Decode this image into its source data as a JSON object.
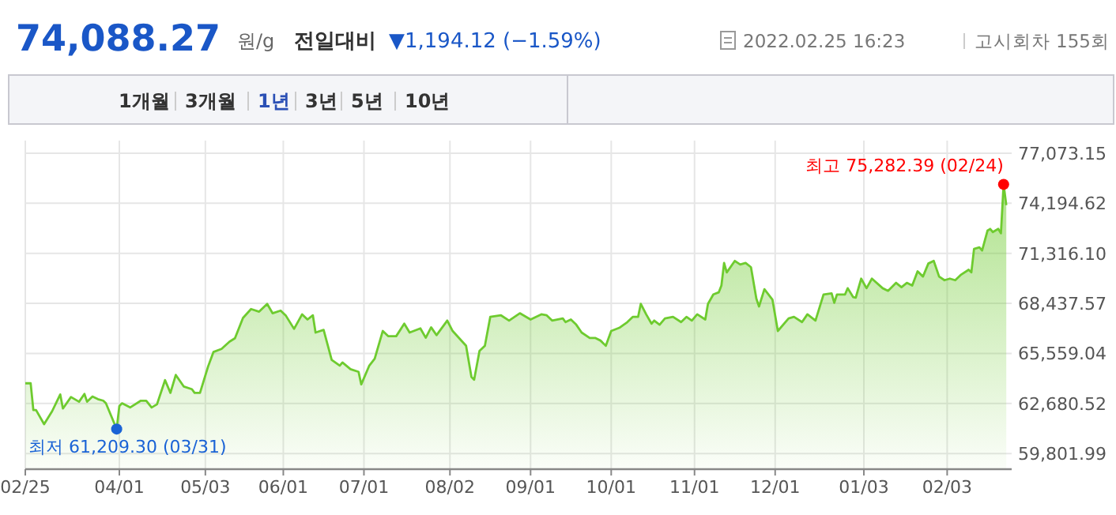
{
  "chart_data": {
    "type": "area",
    "title": "74,088.27",
    "annotations": [
      "원/g",
      "전일대비",
      "▼1,194.12 (−1.59%)",
      "2022.02.25 16:23",
      "고시회차 155회",
      "1개월",
      "3개월",
      "1년",
      "3년",
      "5년",
      "10년",
      {
        "text": "최저 61,209.30 (03/31)",
        "x": "2021-03-31",
        "y": 61209.3
      },
      {
        "text": "최고 75,282.39 (02/24)",
        "x": "2022-02-24",
        "y": 75282.39
      }
    ],
    "x": [
      "2021-02-25",
      "2021-02-27",
      "2021-02-28",
      "2021-03-01",
      "2021-03-04",
      "2021-03-07",
      "2021-03-10",
      "2021-03-11",
      "2021-03-14",
      "2021-03-17",
      "2021-03-19",
      "2021-03-20",
      "2021-03-22",
      "2021-03-24",
      "2021-03-26",
      "2021-03-27",
      "2021-03-31",
      "2021-04-01",
      "2021-04-02",
      "2021-04-05",
      "2021-04-09",
      "2021-04-11",
      "2021-04-13",
      "2021-04-15",
      "2021-04-18",
      "2021-04-20",
      "2021-04-22",
      "2021-04-25",
      "2021-04-28",
      "2021-04-29",
      "2021-05-01",
      "2021-05-04",
      "2021-05-06",
      "2021-05-09",
      "2021-05-12",
      "2021-05-14",
      "2021-05-17",
      "2021-05-20",
      "2021-05-23",
      "2021-05-26",
      "2021-05-28",
      "2021-05-31",
      "2021-06-02",
      "2021-06-05",
      "2021-06-08",
      "2021-06-10",
      "2021-06-12",
      "2021-06-13",
      "2021-06-16",
      "2021-06-19",
      "2021-06-22",
      "2021-06-23",
      "2021-06-26",
      "2021-06-29",
      "2021-06-30",
      "2021-07-03",
      "2021-07-05",
      "2021-07-08",
      "2021-07-10",
      "2021-07-13",
      "2021-07-16",
      "2021-07-18",
      "2021-07-22",
      "2021-07-24",
      "2021-07-26",
      "2021-07-28",
      "2021-08-01",
      "2021-08-03",
      "2021-08-08",
      "2021-08-10",
      "2021-08-11",
      "2021-08-13",
      "2021-08-15",
      "2021-08-17",
      "2021-08-21",
      "2021-08-24",
      "2021-08-28",
      "2021-09-01",
      "2021-09-05",
      "2021-09-07",
      "2021-09-09",
      "2021-09-13",
      "2021-09-14",
      "2021-09-16",
      "2021-09-18",
      "2021-09-20",
      "2021-09-23",
      "2021-09-25",
      "2021-09-27",
      "2021-09-29",
      "2021-10-01",
      "2021-10-04",
      "2021-10-07",
      "2021-10-09",
      "2021-10-11",
      "2021-10-12",
      "2021-10-14",
      "2021-10-16",
      "2021-10-17",
      "2021-10-19",
      "2021-10-21",
      "2021-10-24",
      "2021-10-27",
      "2021-10-29",
      "2021-10-31",
      "2021-11-02",
      "2021-11-05",
      "2021-11-06",
      "2021-11-08",
      "2021-11-10",
      "2021-11-11",
      "2021-11-12",
      "2021-11-13",
      "2021-11-16",
      "2021-11-18",
      "2021-11-20",
      "2021-11-22",
      "2021-11-24",
      "2021-11-25",
      "2021-11-27",
      "2021-11-30",
      "2021-12-02",
      "2021-12-06",
      "2021-12-08",
      "2021-12-11",
      "2021-12-13",
      "2021-12-16",
      "2021-12-19",
      "2021-12-22",
      "2021-12-23",
      "2021-12-24",
      "2021-12-27",
      "2021-12-28",
      "2021-12-30",
      "2021-12-31",
      "2022-01-02",
      "2022-01-04",
      "2022-01-06",
      "2022-01-10",
      "2022-01-12",
      "2022-01-15",
      "2022-01-17",
      "2022-01-19",
      "2022-01-21",
      "2022-01-23",
      "2022-01-25",
      "2022-01-27",
      "2022-01-29",
      "2022-01-31",
      "2022-02-02",
      "2022-02-04",
      "2022-02-06",
      "2022-02-08",
      "2022-02-11",
      "2022-02-12",
      "2022-02-13",
      "2022-02-15",
      "2022-02-16",
      "2022-02-18",
      "2022-02-19",
      "2022-02-20",
      "2022-02-22",
      "2022-02-23",
      "2022-02-24",
      "2022-02-25"
    ],
    "series": [
      {
        "color": "#6ecb2f",
        "values": [
          63840,
          63840,
          62300,
          62300,
          61490,
          62240,
          63200,
          62390,
          63050,
          62780,
          63230,
          62780,
          63080,
          62930,
          62840,
          62690,
          61209.3,
          62540,
          62690,
          62450,
          62840,
          62840,
          62450,
          62630,
          64020,
          63290,
          64320,
          63650,
          63500,
          63290,
          63290,
          64800,
          65640,
          65820,
          66240,
          66430,
          67600,
          68110,
          67960,
          68410,
          67870,
          68020,
          67720,
          66970,
          67810,
          67510,
          67750,
          66760,
          66910,
          65190,
          64860,
          65040,
          64650,
          64500,
          63780,
          64860,
          65250,
          66850,
          66550,
          66550,
          67270,
          66760,
          67000,
          66460,
          67060,
          66610,
          67450,
          66850,
          66000,
          64200,
          64050,
          65700,
          66000,
          67660,
          67750,
          67450,
          67870,
          67510,
          67810,
          67750,
          67450,
          67570,
          67360,
          67510,
          67210,
          66760,
          66450,
          66450,
          66300,
          66000,
          66850,
          67030,
          67360,
          67660,
          67660,
          68410,
          67810,
          67270,
          67450,
          67210,
          67570,
          67660,
          67360,
          67660,
          67450,
          67810,
          67510,
          68410,
          68950,
          69070,
          69460,
          70760,
          70220,
          70880,
          70670,
          70760,
          70520,
          68710,
          68260,
          69250,
          68650,
          66850,
          67570,
          67660,
          67360,
          67810,
          67450,
          68950,
          69010,
          68470,
          68950,
          68950,
          69310,
          68800,
          68770,
          69860,
          69310,
          69860,
          69310,
          69160,
          69620,
          69370,
          69620,
          69460,
          70280,
          69980,
          70730,
          70880,
          69980,
          69770,
          69860,
          69770,
          70070,
          70370,
          70220,
          71570,
          71660,
          71480,
          72620,
          72720,
          72540,
          72720,
          72470,
          75282.39,
          74088.27
        ]
      }
    ],
    "xlim": [
      "2021-02-25",
      "2022-02-27"
    ],
    "xticks": [
      {
        "value": "2021-02-25",
        "label": "02/25"
      },
      {
        "value": "2021-04-01",
        "label": "04/01"
      },
      {
        "value": "2021-05-03",
        "label": "05/03"
      },
      {
        "value": "2021-06-01",
        "label": "06/01"
      },
      {
        "value": "2021-07-01",
        "label": "07/01"
      },
      {
        "value": "2021-08-02",
        "label": "08/02"
      },
      {
        "value": "2021-09-01",
        "label": "09/01"
      },
      {
        "value": "2021-10-01",
        "label": "10/01"
      },
      {
        "value": "2021-11-01",
        "label": "11/01"
      },
      {
        "value": "2021-12-01",
        "label": "12/01"
      },
      {
        "value": "2022-01-03",
        "label": "01/03"
      },
      {
        "value": "2022-02-03",
        "label": "02/03"
      }
    ],
    "ylim": [
      58900,
      77073.15
    ],
    "yticks": [
      {
        "value": 59801.99,
        "label": "59,801.99"
      },
      {
        "value": 62680.52,
        "label": "62,680.52"
      },
      {
        "value": 65559.04,
        "label": "65,559.04"
      },
      {
        "value": 68437.57,
        "label": "68,437.57"
      },
      {
        "value": 71316.1,
        "label": "71,316.10"
      },
      {
        "value": 74194.62,
        "label": "74,194.62"
      },
      {
        "value": 77073.15,
        "label": "77,073.15"
      }
    ],
    "grid": true
  }
}
